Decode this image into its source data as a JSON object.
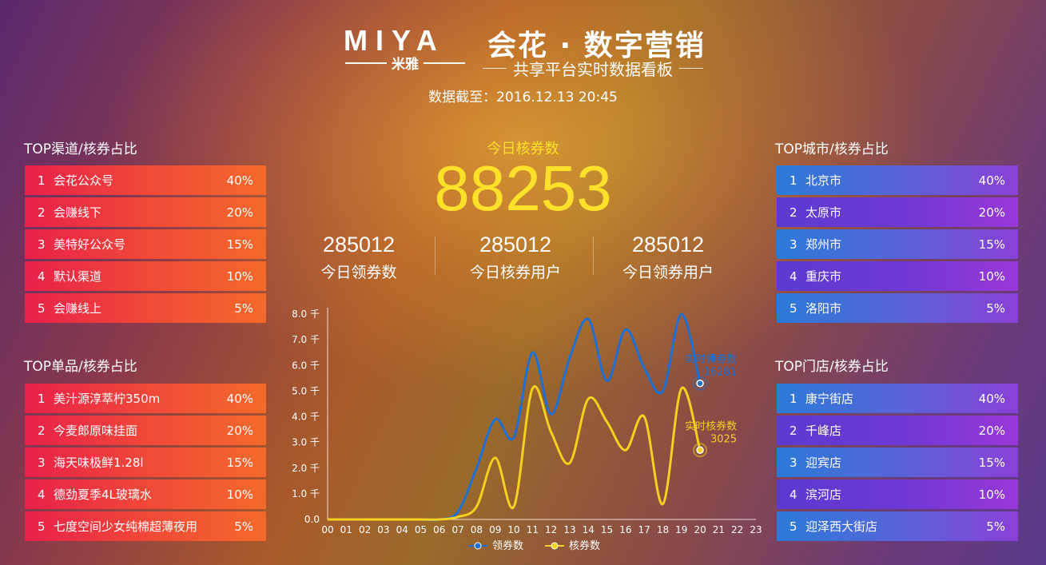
{
  "header": {
    "logo_text": "MIYA",
    "logo_sub": "米雅",
    "title": "会花 · 数字营销",
    "subtitle": "共享平台实时数据看板",
    "cutoff": "数据截至：2016.12.13   20:45"
  },
  "left_channels": {
    "title": "TOP渠道/核券占比",
    "items": [
      {
        "rank": "1",
        "name": "会花公众号",
        "pct": "40%"
      },
      {
        "rank": "2",
        "name": "会赚线下",
        "pct": "20%"
      },
      {
        "rank": "3",
        "name": "美特好公众号",
        "pct": "15%"
      },
      {
        "rank": "4",
        "name": "默认渠道",
        "pct": "10%"
      },
      {
        "rank": "5",
        "name": "会赚线上",
        "pct": "5%"
      }
    ]
  },
  "left_products": {
    "title": "TOP单品/核券占比",
    "items": [
      {
        "rank": "1",
        "name": "美汁源淳萃柠350m",
        "pct": "40%"
      },
      {
        "rank": "2",
        "name": "今麦郎原味挂面",
        "pct": "20%"
      },
      {
        "rank": "3",
        "name": "海天味极鲜1.28l",
        "pct": "15%"
      },
      {
        "rank": "4",
        "name": "德劲夏季4L玻璃水",
        "pct": "10%"
      },
      {
        "rank": "5",
        "name": "七度空间少女纯棉超薄夜用",
        "pct": "5%"
      }
    ]
  },
  "right_cities": {
    "title": "TOP城市/核券占比",
    "items": [
      {
        "rank": "1",
        "name": "北京市",
        "pct": "40%"
      },
      {
        "rank": "2",
        "name": "太原市",
        "pct": "20%"
      },
      {
        "rank": "3",
        "name": "郑州市",
        "pct": "15%"
      },
      {
        "rank": "4",
        "name": "重庆市",
        "pct": "10%"
      },
      {
        "rank": "5",
        "name": "洛阳市",
        "pct": "5%"
      }
    ]
  },
  "right_stores": {
    "title": "TOP门店/核券占比",
    "items": [
      {
        "rank": "1",
        "name": "康宁街店",
        "pct": "40%"
      },
      {
        "rank": "2",
        "name": "千峰店",
        "pct": "20%"
      },
      {
        "rank": "3",
        "name": "迎宾店",
        "pct": "15%"
      },
      {
        "rank": "4",
        "name": "滨河店",
        "pct": "10%"
      },
      {
        "rank": "5",
        "name": "迎泽西大街店",
        "pct": "5%"
      }
    ]
  },
  "center": {
    "today_label": "今日核券数",
    "today_value": "88253",
    "stats": [
      {
        "value": "285012",
        "label": "今日领券数"
      },
      {
        "value": "285012",
        "label": "今日核券用户"
      },
      {
        "value": "285012",
        "label": "今日领券用户"
      }
    ]
  },
  "colors": {
    "receive": "#1e6fd0",
    "redeem": "#f5d020",
    "accent_yellow": "#ffe02a"
  },
  "chart_data": {
    "type": "line",
    "x": [
      "00",
      "01",
      "02",
      "03",
      "04",
      "05",
      "06",
      "07",
      "08",
      "09",
      "10",
      "11",
      "12",
      "13",
      "14",
      "15",
      "16",
      "17",
      "18",
      "19",
      "20",
      "21",
      "22",
      "23"
    ],
    "y_ticks": [
      "0.0",
      "1.0 千",
      "2.0 千",
      "3.0 千",
      "4.0 千",
      "5.0 千",
      "6.0 千",
      "7.0 千",
      "8.0 千"
    ],
    "ylim": [
      0,
      8000
    ],
    "series": [
      {
        "name": "领券数",
        "color": "#1e6fd0",
        "values": [
          0,
          0,
          0,
          0,
          0,
          0,
          0,
          300,
          2000,
          3900,
          3200,
          6500,
          4100,
          6300,
          7800,
          5400,
          7400,
          5900,
          5000,
          8000,
          5300,
          null,
          null,
          null
        ]
      },
      {
        "name": "核券数",
        "color": "#f5d020",
        "values": [
          0,
          0,
          0,
          0,
          0,
          0,
          0,
          100,
          500,
          2400,
          500,
          5100,
          3400,
          2200,
          4700,
          3800,
          2700,
          4000,
          600,
          5100,
          2700,
          null,
          null,
          null
        ]
      }
    ],
    "annotations": [
      {
        "series": 0,
        "label": "实时领券数",
        "value": "16281"
      },
      {
        "series": 1,
        "label": "实时核券数",
        "value": "3025"
      }
    ],
    "legend_position": "bottom-center"
  }
}
